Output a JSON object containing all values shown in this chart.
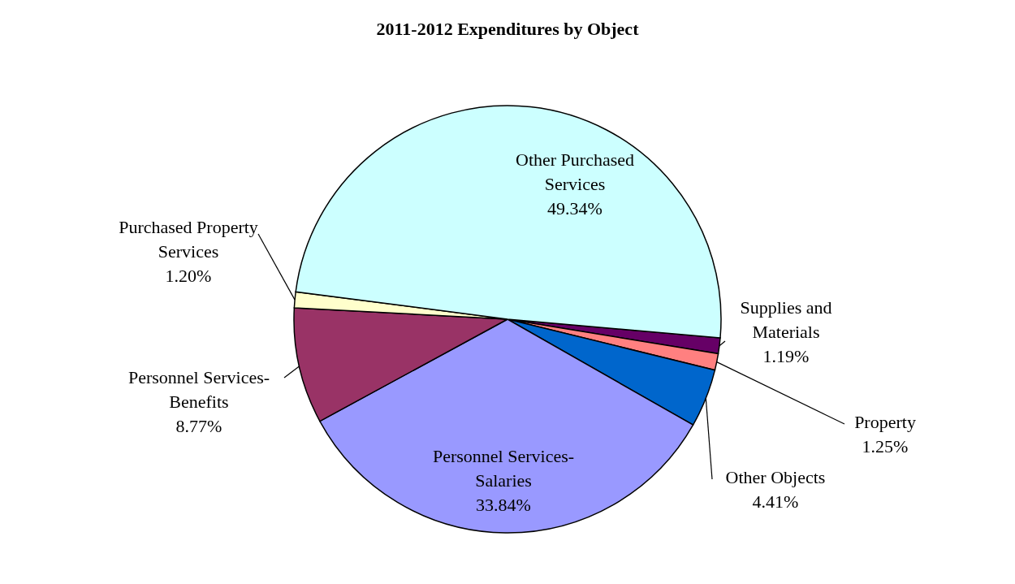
{
  "chart_data": {
    "type": "pie",
    "title": "2011-2012 Expenditures by Object",
    "categories": [
      "Supplies and Materials",
      "Property",
      "Other Objects",
      "Personnel Services-Salaries",
      "Personnel Services-Benefits",
      "Purchased Property Services",
      "Other Purchased Services"
    ],
    "values": [
      1.19,
      1.25,
      4.41,
      33.84,
      8.77,
      1.2,
      49.34
    ],
    "value_labels": [
      "1.19%",
      "1.25%",
      "4.41%",
      "33.84%",
      "8.77%",
      "1.20%",
      "49.34%"
    ],
    "colors": [
      "#660066",
      "#ff8080",
      "#0066cc",
      "#9999ff",
      "#993366",
      "#ffffcc",
      "#ccffff"
    ]
  }
}
